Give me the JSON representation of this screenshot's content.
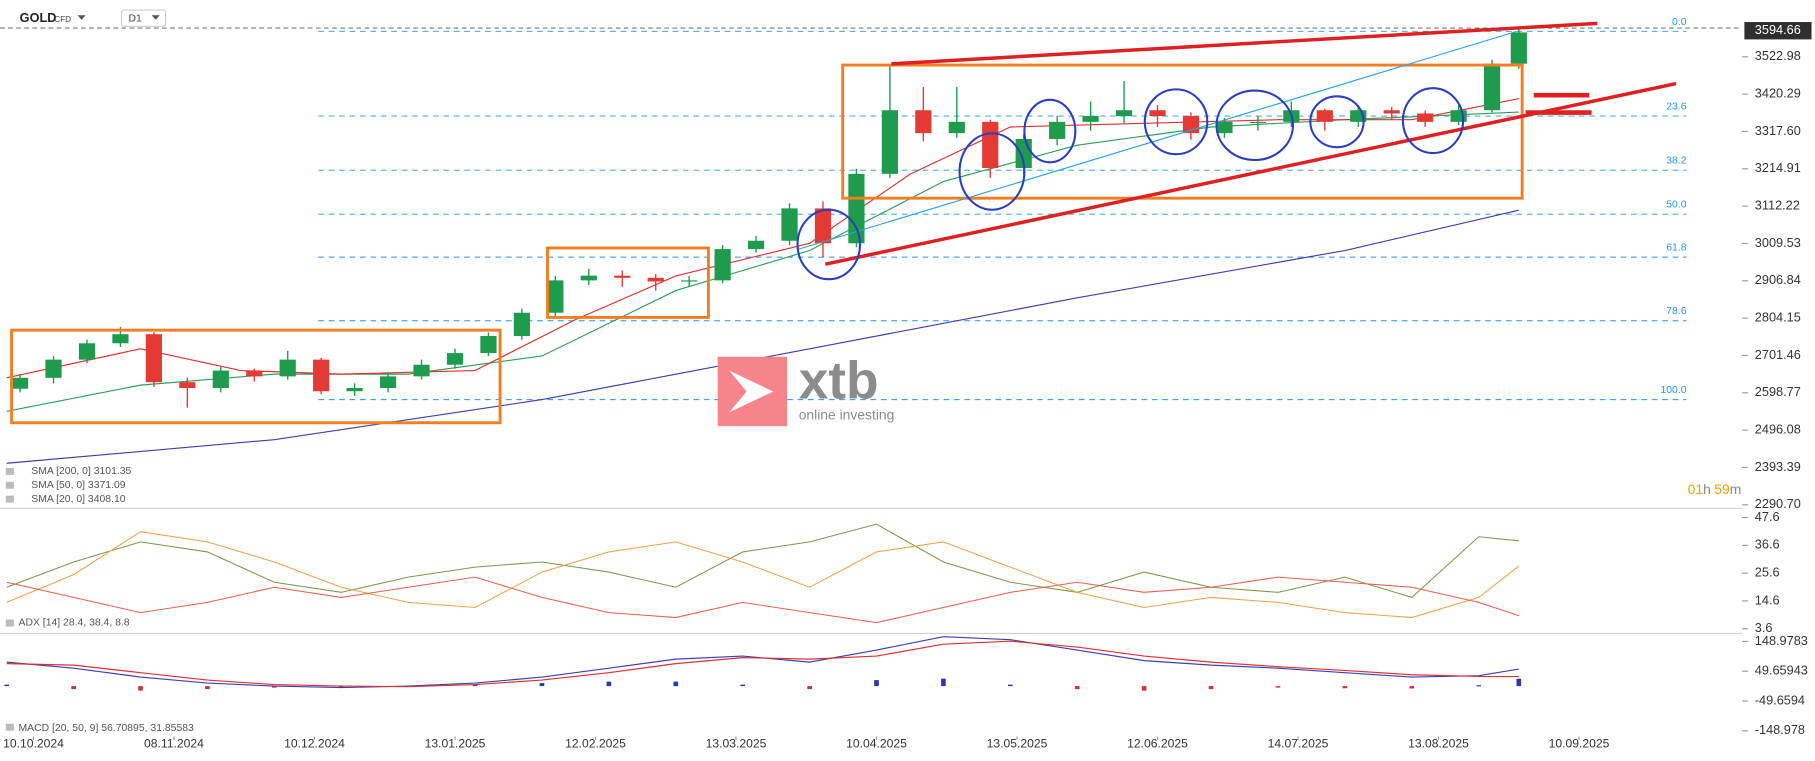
{
  "header": {
    "symbol": "GOLD",
    "instrument": "CFD",
    "interval": "D1"
  },
  "logo": {
    "brand": "xtb",
    "tagline": "online investing"
  },
  "timer": [
    "01",
    "h",
    "59",
    "m"
  ],
  "chart_data": [
    {
      "type": "candlestick",
      "x": [
        2,
        7,
        12,
        17,
        22,
        27,
        32,
        37,
        42,
        47,
        52,
        57,
        62,
        67,
        72,
        77,
        82,
        87,
        92,
        97,
        102,
        107,
        112,
        117,
        122,
        127,
        132,
        137,
        142,
        147,
        152,
        157,
        162,
        167,
        172,
        177,
        182,
        187,
        192,
        197,
        202,
        207,
        212,
        217,
        222,
        226
      ],
      "open": [
        2610,
        2640,
        2690,
        2735,
        2760,
        2628,
        2612,
        2660,
        2644,
        2690,
        2603,
        2612,
        2644,
        2676,
        2708,
        2755,
        2819,
        2908,
        2921,
        2915,
        2905,
        2908,
        2994,
        3017,
        3106,
        3010,
        3201,
        3376,
        3313,
        3344,
        3217,
        3297,
        3344,
        3360,
        3376,
        3360,
        3313,
        3344,
        3344,
        3376,
        3344,
        3376,
        3367,
        3344,
        3376,
        3504
      ],
      "high": [
        2650,
        2700,
        2745,
        2780,
        2765,
        2640,
        2670,
        2665,
        2714,
        2695,
        2625,
        2655,
        2690,
        2720,
        2765,
        2830,
        2920,
        2940,
        2935,
        2925,
        2920,
        3005,
        3030,
        3120,
        3125,
        3215,
        3500,
        3440,
        3440,
        3350,
        3310,
        3360,
        3400,
        3456,
        3390,
        3370,
        3355,
        3360,
        3400,
        3380,
        3390,
        3385,
        3375,
        3390,
        3515,
        3600
      ],
      "low": [
        2600,
        2625,
        2680,
        2725,
        2615,
        2558,
        2600,
        2630,
        2635,
        2595,
        2590,
        2600,
        2635,
        2665,
        2700,
        2745,
        2810,
        2895,
        2890,
        2880,
        2890,
        2900,
        2985,
        3005,
        2972,
        3000,
        3190,
        3290,
        3300,
        3190,
        3200,
        3280,
        3320,
        3340,
        3330,
        3295,
        3300,
        3320,
        3330,
        3320,
        3330,
        3350,
        3330,
        3335,
        3370,
        3490
      ],
      "close": [
        2640,
        2690,
        2735,
        2760,
        2628,
        2612,
        2660,
        2644,
        2690,
        2603,
        2612,
        2644,
        2676,
        2708,
        2755,
        2819,
        2908,
        2921,
        2915,
        2905,
        2908,
        2994,
        3017,
        3106,
        3010,
        3201,
        3376,
        3313,
        3344,
        3217,
        3297,
        3344,
        3360,
        3376,
        3360,
        3313,
        3344,
        3344,
        3376,
        3344,
        3376,
        3367,
        3344,
        3376,
        3504,
        3590
      ],
      "colors": {
        "up": "#1f9b4e",
        "down": "#e53935"
      },
      "overlays": [
        {
          "name": "SMA [200, 0] 3101.35",
          "color": "#3f3fa8",
          "x": [
            0,
            40,
            80,
            120,
            160,
            200,
            226
          ],
          "values": [
            2405,
            2470,
            2580,
            2720,
            2860,
            2990,
            3101
          ]
        },
        {
          "name": "SMA [50, 0] 3371.09",
          "color": "#2e9e5b",
          "x": [
            0,
            20,
            40,
            60,
            80,
            100,
            120,
            140,
            160,
            180,
            200,
            226
          ],
          "values": [
            2548,
            2620,
            2650,
            2650,
            2700,
            2880,
            2990,
            3180,
            3280,
            3330,
            3350,
            3371
          ]
        },
        {
          "name": "SMA [20, 0] 3408.10",
          "color": "#e0312f",
          "x": [
            0,
            20,
            35,
            50,
            70,
            85,
            100,
            120,
            135,
            150,
            170,
            190,
            210,
            226
          ],
          "values": [
            2640,
            2720,
            2660,
            2650,
            2660,
            2800,
            2920,
            3010,
            3200,
            3330,
            3340,
            3350,
            3350,
            3408
          ]
        }
      ],
      "fib_levels": [
        {
          "level": {
            "value": 0,
            "label": "0.0"
          },
          "price": 3593
        },
        {
          "level": 23.6,
          "price": 3360
        },
        {
          "level": 38.2,
          "price": 3211
        },
        {
          "level": {
            "value": 50,
            "label": "50.0"
          },
          "price": 3090
        },
        {
          "level": 61.8,
          "price": 2972
        },
        {
          "level": 78.6,
          "price": 2797
        },
        {
          "level": {
            "value": 100,
            "label": "100.0"
          },
          "price": 2580
        }
      ],
      "last_price": 3594.66,
      "xlim": [
        -1,
        258.5
      ],
      "xticks": [
        {
          "value": 4,
          "label": "10.10.2024"
        },
        {
          "value": 25,
          "label": "08.11.2024"
        },
        {
          "value": 46,
          "label": "10.12.2024"
        },
        {
          "value": 67,
          "label": "13.01.2025"
        },
        {
          "value": 88,
          "label": "12.02.2025"
        },
        {
          "value": 109,
          "label": "13.03.2025"
        },
        {
          "value": 130,
          "label": "10.04.2025"
        },
        {
          "value": 151,
          "label": "13.05.2025"
        },
        {
          "value": 172,
          "label": "12.06.2025"
        },
        {
          "value": 193,
          "label": "14.07.2025"
        },
        {
          "value": 214,
          "label": "13.08.2025"
        },
        {
          "value": 235,
          "label": "10.09.2025"
        }
      ],
      "ylim": [
        2284,
        3653
      ],
      "yticks": [
        3522.98,
        3420.29,
        {
          "value": 3317.6,
          "label": "3317.60"
        },
        3214.91,
        3112.22,
        3009.53,
        2906.84,
        2804.15,
        2701.46,
        2598.77,
        2496.08,
        2393.39,
        {
          "value": 2290.7,
          "label": "2290.70"
        }
      ]
    },
    {
      "type": "line",
      "title": "ADX [14] 28.4, 38.4, 8.8",
      "x": [
        0,
        10,
        20,
        30,
        40,
        50,
        60,
        70,
        80,
        90,
        100,
        110,
        120,
        130,
        140,
        150,
        160,
        170,
        180,
        190,
        200,
        210,
        220,
        226
      ],
      "series": [
        {
          "color": "#7a9a4a",
          "values": [
            20,
            30,
            38,
            34,
            22,
            18,
            24,
            28,
            30,
            26,
            20,
            34,
            38,
            45,
            30,
            22,
            18,
            26,
            20,
            18,
            24,
            16,
            40,
            38.4
          ]
        },
        {
          "color": "#f5a04a",
          "values": [
            14,
            25,
            42,
            38,
            30,
            20,
            14,
            12,
            26,
            34,
            38,
            30,
            20,
            34,
            38,
            28,
            18,
            12,
            16,
            14,
            10,
            8,
            16,
            28.4
          ]
        },
        {
          "color": "#e8624a",
          "values": [
            22,
            16,
            10,
            14,
            20,
            16,
            20,
            24,
            16,
            10,
            8,
            14,
            10,
            6,
            12,
            18,
            22,
            18,
            20,
            24,
            22,
            20,
            14,
            8.8
          ]
        }
      ],
      "xlim": [
        -1,
        258.5
      ],
      "ylim": [
        2.2,
        50.3
      ],
      "yticks": [
        47.6,
        36.6,
        25.6,
        14.6,
        3.6
      ]
    },
    {
      "type": "macd",
      "title": "MACD [20, 50, 9] 56.70895, 31.85583",
      "x": [
        0,
        10,
        20,
        30,
        40,
        50,
        60,
        70,
        80,
        90,
        100,
        110,
        120,
        130,
        140,
        150,
        160,
        170,
        180,
        190,
        200,
        210,
        220,
        226
      ],
      "series": [
        {
          "color": "#3f3fb5",
          "values": [
            80,
            60,
            30,
            10,
            0,
            -5,
            0,
            10,
            30,
            60,
            90,
            100,
            80,
            120,
            165,
            155,
            120,
            85,
            70,
            60,
            45,
            30,
            35,
            56.7
          ]
        },
        {
          "color": "#e0312f",
          "values": [
            75,
            70,
            45,
            20,
            5,
            0,
            -2,
            5,
            20,
            45,
            75,
            95,
            90,
            100,
            140,
            150,
            130,
            100,
            80,
            65,
            52,
            38,
            32,
            31.9
          ]
        }
      ],
      "histogram": {
        "values": [
          5,
          -10,
          -15,
          -10,
          -5,
          -5,
          2,
          5,
          10,
          15,
          15,
          5,
          -10,
          20,
          25,
          5,
          -10,
          -15,
          -10,
          -5,
          -7,
          -8,
          3,
          24.8
        ],
        "colors": {
          "up": "#2b3aa8",
          "down": "#d32f2f"
        }
      },
      "xlim": [
        -1,
        258.5
      ],
      "ylim": [
        -164,
        168
      ],
      "yticks": [
        148.9783,
        49.65943,
        -49.6594,
        -148.978
      ]
    }
  ]
}
